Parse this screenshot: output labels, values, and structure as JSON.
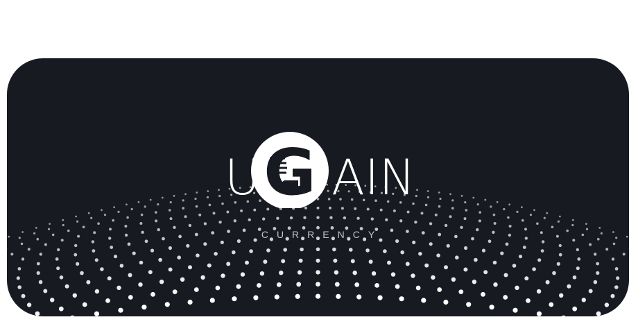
{
  "logo": {
    "wordmark_first": "U",
    "wordmark_emblem": "G",
    "wordmark_rest": "AIN",
    "tagline": "CURRENCY"
  },
  "colors": {
    "background": "#ffffff",
    "banner": "#171a21",
    "logo": "#ffffff",
    "tagline": "#bfc3ca",
    "dots": "#ffffff"
  },
  "icons": {
    "emblem": "g-emblem-icon"
  }
}
